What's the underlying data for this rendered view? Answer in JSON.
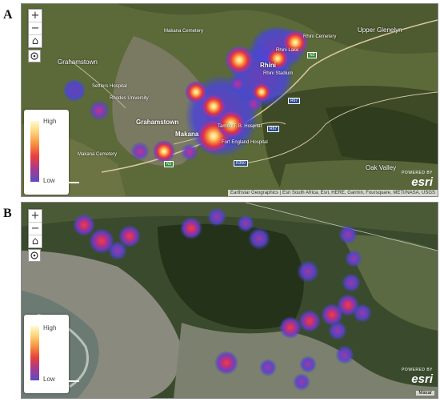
{
  "panel_a": {
    "letter": "A",
    "zoom_in": "+",
    "zoom_out": "−",
    "legend": {
      "high": "High",
      "low": "Low"
    },
    "attribution": "Earthstar Geographics | Esri South Africa, Esri, HERE, Garmin, Foursquare, METI/NASA, USGS",
    "esri_powered": "POWERED BY",
    "esri_logo": "esri",
    "labels": {
      "grahamstown": "Grahamstown",
      "grahamstown_small": "Grahamstown",
      "makana": "Makana",
      "rhini": "Rhini",
      "rhini_lake": "Rhini Lake",
      "rhini_cemetery": "Rhini Cemetery",
      "rhini_stadium": "Rhini Stadium",
      "upper_glenelyn": "Upper Glenelyn",
      "oak_valley": "Oak Valley",
      "makana_cemetery": "Makana Cemetery",
      "settlers_hospital": "Settlers Hospital",
      "rhodes_university": "Rhodes University",
      "tamboe_hospital": "Tambo T. B. Hospital",
      "fort_england": "Fort England Hospital",
      "makana_south": "Makana Cemetery"
    },
    "shields": {
      "n2_west": "N2",
      "n2_east": "N2",
      "r67": "R67",
      "r67_b": "R67",
      "r350": "R350"
    }
  },
  "panel_b": {
    "letter": "B",
    "zoom_in": "+",
    "zoom_out": "−",
    "legend": {
      "high": "High",
      "low": "Low"
    },
    "esri_powered": "POWERED BY",
    "esri_logo": "esri",
    "maxar": "Maxar"
  }
}
